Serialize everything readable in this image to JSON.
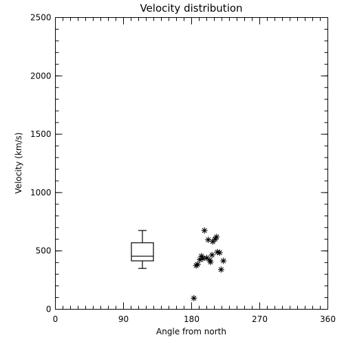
{
  "chart_data": {
    "type": "scatter",
    "title": "Velocity distribution",
    "xlabel": "Angle from north",
    "ylabel": "Velocity (km/s)",
    "xlim": [
      0,
      360
    ],
    "ylim": [
      0,
      2500
    ],
    "x_ticks": [
      0,
      90,
      180,
      270,
      360
    ],
    "y_ticks": [
      0,
      500,
      1000,
      1500,
      2000,
      2500
    ],
    "x_minor_step": 10,
    "y_minor_step": 100,
    "grid": false,
    "boxplot": {
      "x": 115,
      "min": 350,
      "q1": 415,
      "median": 455,
      "q3": 570,
      "max": 675
    },
    "points": [
      {
        "x": 183,
        "y": 95
      },
      {
        "x": 186,
        "y": 375
      },
      {
        "x": 188,
        "y": 385
      },
      {
        "x": 191,
        "y": 425
      },
      {
        "x": 193,
        "y": 455
      },
      {
        "x": 195,
        "y": 435
      },
      {
        "x": 197,
        "y": 675
      },
      {
        "x": 200,
        "y": 440
      },
      {
        "x": 202,
        "y": 595
      },
      {
        "x": 204,
        "y": 420
      },
      {
        "x": 205,
        "y": 405
      },
      {
        "x": 207,
        "y": 465
      },
      {
        "x": 208,
        "y": 580
      },
      {
        "x": 211,
        "y": 600
      },
      {
        "x": 213,
        "y": 620
      },
      {
        "x": 214,
        "y": 490
      },
      {
        "x": 217,
        "y": 485
      },
      {
        "x": 219,
        "y": 340
      },
      {
        "x": 222,
        "y": 415
      }
    ]
  }
}
